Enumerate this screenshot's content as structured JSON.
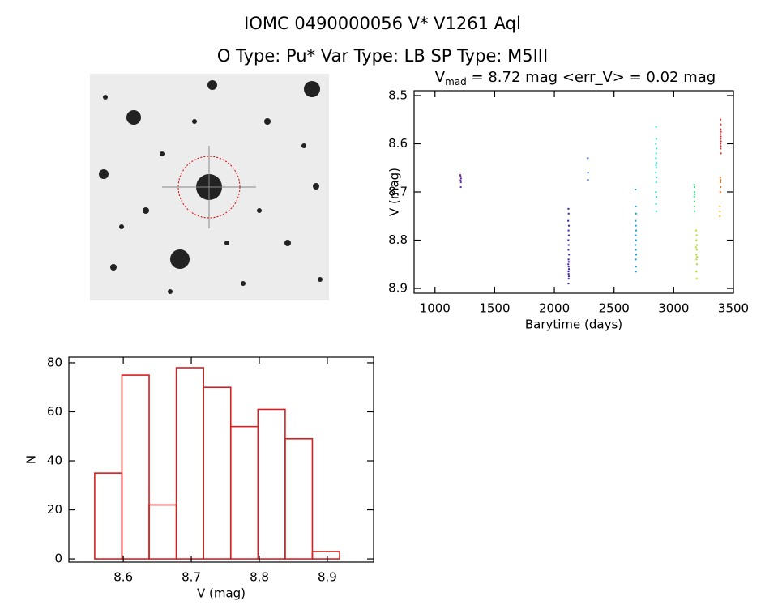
{
  "header": {
    "title": "IOMC 0490000056    V* V1261 Aql",
    "subtitle": "O Type: Pu*   Var Type: LB   SP Type: M5III"
  },
  "chart_data": [
    {
      "type": "scatter",
      "title": {
        "main": "V",
        "subscript": "mad",
        "rest": " = 8.72 mag <err_V> = 0.02 mag"
      },
      "x_label": "Barytime (days)",
      "y_label": "V (mag)",
      "xlim": [
        825,
        3500
      ],
      "xticks": [
        1000,
        1500,
        2000,
        2500,
        3000,
        3500
      ],
      "ylim": [
        8.91,
        8.49
      ],
      "yticks": [
        8.5,
        8.6,
        8.7,
        8.8,
        8.9
      ],
      "yticks_labels": [
        "8.5",
        "8.6",
        "8.7",
        "8.8",
        "8.9"
      ],
      "series": [
        {
          "color": "#6a2a9a",
          "x": [
            1212,
            1215,
            1218,
            1214,
            1217,
            1216
          ],
          "values": [
            8.665,
            8.668,
            8.672,
            8.676,
            8.68,
            8.69
          ]
        },
        {
          "color": "#3c20b0",
          "x": [
            2118,
            2120,
            2116,
            2122,
            2119,
            2121,
            2117,
            2120,
            2118,
            2123,
            2119,
            2121,
            2117,
            2120,
            2122,
            2118,
            2119,
            2121,
            2120,
            2118
          ],
          "values": [
            8.735,
            8.745,
            8.76,
            8.77,
            8.78,
            8.79,
            8.8,
            8.81,
            8.82,
            8.83,
            8.84,
            8.845,
            8.85,
            8.855,
            8.86,
            8.865,
            8.87,
            8.875,
            8.88,
            8.89
          ]
        },
        {
          "color": "#2050c8",
          "x": [
            2280,
            2282,
            2281
          ],
          "values": [
            8.63,
            8.66,
            8.675
          ]
        },
        {
          "color": "#18a0d8",
          "x": [
            2680,
            2682,
            2684,
            2681,
            2683,
            2685,
            2682,
            2684,
            2681,
            2683,
            2685,
            2682,
            2684,
            2683
          ],
          "values": [
            8.695,
            8.73,
            8.745,
            8.76,
            8.77,
            8.78,
            8.79,
            8.8,
            8.81,
            8.82,
            8.83,
            8.84,
            8.855,
            8.865
          ]
        },
        {
          "color": "#30e0d0",
          "x": [
            2852,
            2854,
            2850,
            2856,
            2853,
            2851,
            2855,
            2852,
            2854,
            2850,
            2856,
            2853,
            2851,
            2855,
            2852,
            2854
          ],
          "values": [
            8.565,
            8.59,
            8.6,
            8.61,
            8.62,
            8.63,
            8.64,
            8.645,
            8.65,
            8.66,
            8.67,
            8.68,
            8.7,
            8.71,
            8.725,
            8.74
          ]
        },
        {
          "color": "#30e080",
          "x": [
            3172,
            3174,
            3173,
            3175,
            3172,
            3174,
            3173,
            3175
          ],
          "values": [
            8.685,
            8.69,
            8.7,
            8.705,
            8.71,
            8.72,
            8.73,
            8.74
          ]
        },
        {
          "color": "#a8e030",
          "x": [
            3188,
            3192,
            3190,
            3195,
            3187,
            3193,
            3189,
            3196,
            3191,
            3194,
            3190,
            3192
          ],
          "values": [
            8.78,
            8.79,
            8.8,
            8.81,
            8.815,
            8.82,
            8.83,
            8.835,
            8.84,
            8.85,
            8.865,
            8.88
          ]
        },
        {
          "color": "#d82020",
          "x": [
            3392,
            3394,
            3393,
            3395,
            3392,
            3394,
            3393,
            3395,
            3392,
            3394,
            3393,
            3395
          ],
          "values": [
            8.55,
            8.56,
            8.57,
            8.575,
            8.58,
            8.585,
            8.59,
            8.595,
            8.6,
            8.605,
            8.61,
            8.62
          ]
        },
        {
          "color": "#e07010",
          "x": [
            3390,
            3392,
            3391,
            3393,
            3390
          ],
          "values": [
            8.67,
            8.675,
            8.68,
            8.69,
            8.7
          ]
        },
        {
          "color": "#e8c020",
          "x": [
            3386,
            3387,
            3386
          ],
          "values": [
            8.73,
            8.74,
            8.75
          ]
        }
      ]
    },
    {
      "type": "histogram",
      "x_label": "V (mag)",
      "y_label": "N",
      "color": "#d42020",
      "bins": [
        8.558,
        8.598,
        8.638,
        8.678,
        8.718,
        8.758,
        8.798,
        8.838,
        8.878,
        8.918
      ],
      "values": [
        35,
        75,
        22,
        78,
        70,
        54,
        61,
        49,
        3
      ],
      "xlim": [
        8.52,
        8.968
      ],
      "xticks": [
        8.6,
        8.7,
        8.8,
        8.9
      ],
      "ylim": [
        -1.3,
        82.3
      ],
      "yticks": [
        0,
        20,
        40,
        60,
        80
      ]
    }
  ]
}
